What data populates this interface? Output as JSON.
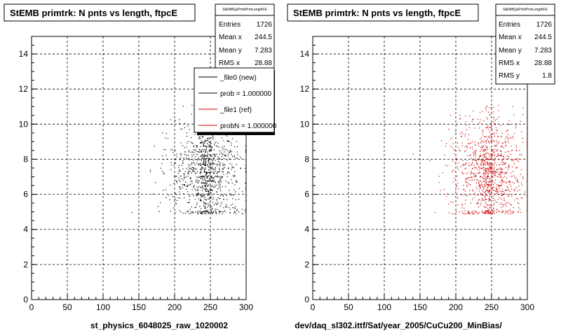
{
  "colors": {
    "black": "#000000",
    "red": "#d00000",
    "frame": "#000000",
    "bg": "#ffffff",
    "grid": "#000000"
  },
  "panels": [
    {
      "title": "StEMB primtrk: N pnts vs length, ftpcE",
      "stats": {
        "name": "StEMBQaPrtrkPrmLengthFE",
        "rows": [
          {
            "k": "Entries",
            "v": "1726"
          },
          {
            "k": "Mean x",
            "v": "244.5"
          },
          {
            "k": "Mean y",
            "v": "7.283"
          },
          {
            "k": "RMS x",
            "v": "28.88"
          }
        ]
      },
      "legend": {
        "entries": [
          {
            "label": "_file0 (new)",
            "color": "#000000"
          },
          {
            "label": "prob = 1.000000",
            "color": "#000000"
          },
          {
            "label": "_file1 (ref)",
            "color": "#d00000"
          },
          {
            "label": "probN = 1.000000",
            "color": "#d00000"
          }
        ]
      },
      "xlabel": "st_physics_6048025_raw_1020002",
      "point_color": "#000000"
    },
    {
      "title": "StEMB primtrk: N pnts vs length, ftpcE",
      "stats": {
        "name": "StEMBQaPrtrkPrmLengthFE",
        "rows": [
          {
            "k": "Entries",
            "v": "1726"
          },
          {
            "k": "Mean x",
            "v": "244.5"
          },
          {
            "k": "Mean y",
            "v": "7.283"
          },
          {
            "k": "RMS x",
            "v": "28.88"
          },
          {
            "k": "RMS y",
            "v": "1.8"
          }
        ]
      },
      "xlabel": "dev/daq_sl302.ittf/Sat/year_2005/CuCu200_MinBias/",
      "point_color": "#d00000"
    }
  ],
  "chart_data": [
    {
      "type": "scatter",
      "title": "StEMB primtrk: N pnts vs length, ftpcE",
      "xlabel": "st_physics_6048025_raw_1020002",
      "ylabel": "",
      "xlim": [
        0,
        300
      ],
      "ylim": [
        0,
        15
      ],
      "xticks": [
        0,
        50,
        100,
        150,
        200,
        250,
        300
      ],
      "yticks": [
        0,
        2,
        4,
        6,
        8,
        10,
        12,
        14
      ],
      "grid": true,
      "series": [
        {
          "values": {
            "x_range": [
              140,
              300
            ],
            "y_range": [
              5,
              11
            ],
            "entries": 1726,
            "mean_x": 244.5,
            "mean_y": 7.283,
            "rms_x": 28.88
          }
        }
      ]
    },
    {
      "type": "scatter",
      "title": "StEMB primtrk: N pnts vs length, ftpcE",
      "xlabel": "dev/daq_sl302.ittf/Sat/year_2005/CuCu200_MinBias/",
      "ylabel": "",
      "xlim": [
        0,
        300
      ],
      "ylim": [
        0,
        15
      ],
      "xticks": [
        0,
        50,
        100,
        150,
        200,
        250,
        300
      ],
      "yticks": [
        0,
        2,
        4,
        6,
        8,
        10,
        12,
        14
      ],
      "grid": true,
      "series": [
        {
          "values": {
            "x_range": [
              140,
              300
            ],
            "y_range": [
              5,
              11
            ],
            "entries": 1726,
            "mean_x": 244.5,
            "mean_y": 7.283,
            "rms_x": 28.88,
            "rms_y": 1.8
          }
        }
      ]
    }
  ]
}
